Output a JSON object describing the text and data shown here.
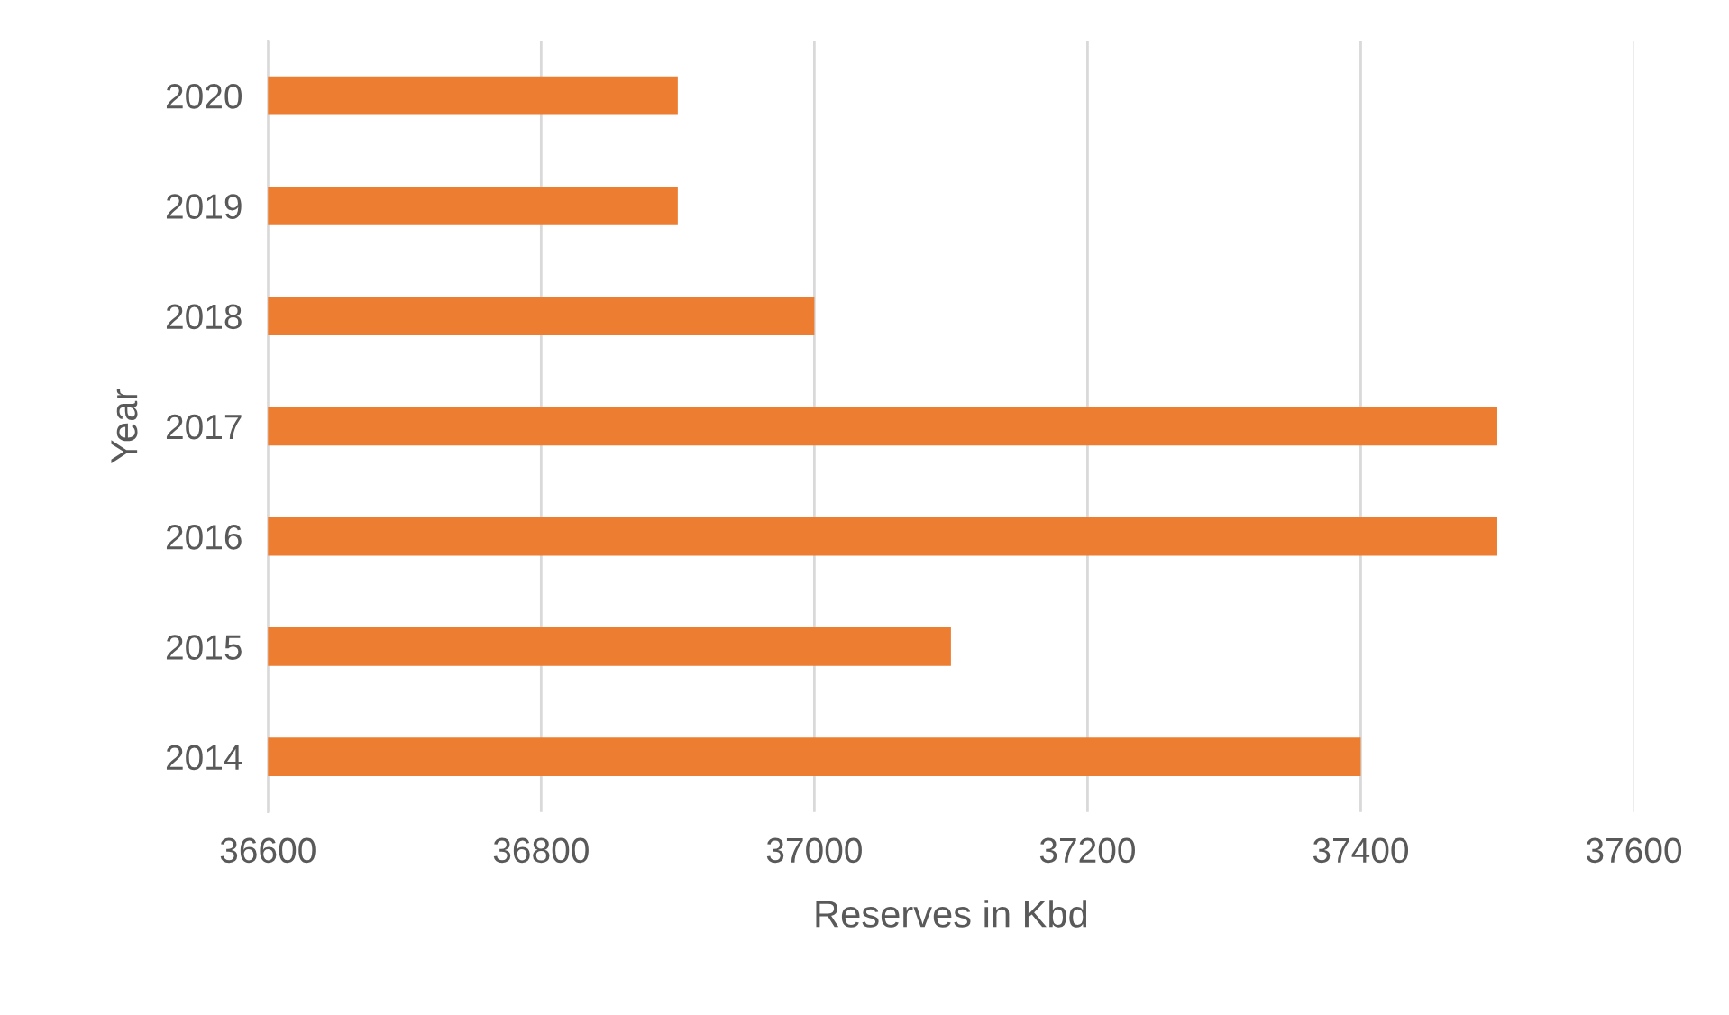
{
  "chart_data": {
    "type": "bar",
    "orientation": "horizontal",
    "xlabel": "Reserves in Kbd",
    "ylabel": "Year",
    "categories": [
      "2020",
      "2019",
      "2018",
      "2017",
      "2016",
      "2015",
      "2014"
    ],
    "values": [
      36900,
      36900,
      37000,
      37500,
      37500,
      37100,
      37400
    ],
    "color": "#ed7d31",
    "xlim": [
      36600,
      37600
    ],
    "xticks": [
      36600,
      36800,
      37000,
      37200,
      37400,
      37600
    ],
    "grid": "x"
  }
}
